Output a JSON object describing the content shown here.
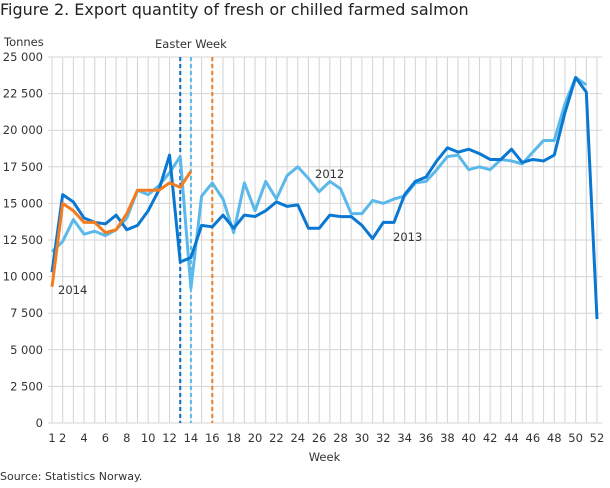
{
  "title": "Figure 2. Export quantity of fresh or chilled farmed salmon",
  "source": "Source: Statistics Norway.",
  "chart_data": {
    "type": "line",
    "title": "Figure 2. Export quantity of fresh or chilled farmed salmon",
    "xlabel": "Week",
    "ylabel": "Tonnes",
    "ylim": [
      0,
      25000
    ],
    "xlim": [
      1,
      52
    ],
    "yticks": [
      0,
      2500,
      5000,
      7500,
      10000,
      12500,
      15000,
      17500,
      20000,
      22500,
      25000
    ],
    "ytick_labels": [
      "0",
      "2 500",
      "5 000",
      "7 500",
      "10 000",
      "12 500",
      "15 000",
      "17 500",
      "20 000",
      "22 500",
      "25 000"
    ],
    "xticks": [
      1,
      2,
      4,
      6,
      8,
      10,
      12,
      14,
      16,
      18,
      20,
      22,
      24,
      26,
      28,
      30,
      32,
      34,
      36,
      38,
      40,
      42,
      44,
      46,
      48,
      50,
      52
    ],
    "grid": true,
    "annotation": "Easter Week",
    "easter_weeks": [
      {
        "series": "2013",
        "week": 13,
        "color": "#0a6bc1"
      },
      {
        "series": "2012",
        "week": 14,
        "color": "#5bb8ea"
      },
      {
        "series": "2014",
        "week": 16,
        "color": "#f47c20"
      }
    ],
    "series": [
      {
        "name": "2012",
        "color": "#5bb8ea",
        "values": [
          11700,
          12400,
          13900,
          12900,
          13100,
          12800,
          13200,
          14000,
          15900,
          15600,
          16200,
          17100,
          18200,
          9200,
          15500,
          16400,
          15300,
          13000,
          16400,
          14500,
          16500,
          15300,
          16900,
          17500,
          16700,
          15800,
          16500,
          16000,
          14300,
          14300,
          15200,
          15000,
          15300,
          15500,
          16400,
          16500,
          17300,
          18200,
          18300,
          17300,
          17500,
          17300,
          18000,
          17900,
          17700,
          18500,
          19300,
          19300,
          21800,
          23600,
          23100
        ]
      },
      {
        "name": "2013",
        "color": "#0a78d2",
        "values": [
          10300,
          15600,
          15100,
          14000,
          13700,
          13600,
          14200,
          13200,
          13500,
          14500,
          15900,
          18300,
          11000,
          11300,
          13500,
          13400,
          14200,
          13300,
          14200,
          14100,
          14500,
          15100,
          14800,
          14900,
          13300,
          13300,
          14200,
          14100,
          14100,
          13500,
          12600,
          13700,
          13700,
          15600,
          16500,
          16800,
          17900,
          18800,
          18500,
          18700,
          18400,
          18000,
          18000,
          18700,
          17800,
          18000,
          17900,
          18300,
          21200,
          23600,
          22600,
          7100
        ]
      },
      {
        "name": "2014",
        "color": "#f47c20",
        "values": [
          9300,
          15000,
          14500,
          13700,
          13700,
          13000,
          13200,
          14300,
          15900,
          15900,
          15900,
          16400,
          16100,
          17200
        ]
      }
    ]
  }
}
